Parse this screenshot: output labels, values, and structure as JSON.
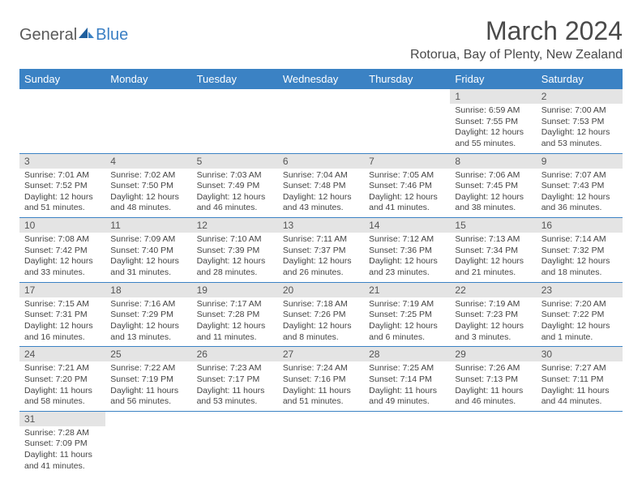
{
  "logo": {
    "text_general": "General",
    "text_blue": "Blue"
  },
  "header": {
    "month_title": "March 2024",
    "location": "Rotorua, Bay of Plenty, New Zealand"
  },
  "colors": {
    "header_bg": "#3b82c4",
    "header_text": "#ffffff",
    "daynum_bg": "#e4e4e4",
    "border": "#3b82c4"
  },
  "weekdays": [
    "Sunday",
    "Monday",
    "Tuesday",
    "Wednesday",
    "Thursday",
    "Friday",
    "Saturday"
  ],
  "weeks": [
    [
      null,
      null,
      null,
      null,
      null,
      {
        "n": "1",
        "sr": "Sunrise: 6:59 AM",
        "ss": "Sunset: 7:55 PM",
        "dl": "Daylight: 12 hours and 55 minutes."
      },
      {
        "n": "2",
        "sr": "Sunrise: 7:00 AM",
        "ss": "Sunset: 7:53 PM",
        "dl": "Daylight: 12 hours and 53 minutes."
      }
    ],
    [
      {
        "n": "3",
        "sr": "Sunrise: 7:01 AM",
        "ss": "Sunset: 7:52 PM",
        "dl": "Daylight: 12 hours and 51 minutes."
      },
      {
        "n": "4",
        "sr": "Sunrise: 7:02 AM",
        "ss": "Sunset: 7:50 PM",
        "dl": "Daylight: 12 hours and 48 minutes."
      },
      {
        "n": "5",
        "sr": "Sunrise: 7:03 AM",
        "ss": "Sunset: 7:49 PM",
        "dl": "Daylight: 12 hours and 46 minutes."
      },
      {
        "n": "6",
        "sr": "Sunrise: 7:04 AM",
        "ss": "Sunset: 7:48 PM",
        "dl": "Daylight: 12 hours and 43 minutes."
      },
      {
        "n": "7",
        "sr": "Sunrise: 7:05 AM",
        "ss": "Sunset: 7:46 PM",
        "dl": "Daylight: 12 hours and 41 minutes."
      },
      {
        "n": "8",
        "sr": "Sunrise: 7:06 AM",
        "ss": "Sunset: 7:45 PM",
        "dl": "Daylight: 12 hours and 38 minutes."
      },
      {
        "n": "9",
        "sr": "Sunrise: 7:07 AM",
        "ss": "Sunset: 7:43 PM",
        "dl": "Daylight: 12 hours and 36 minutes."
      }
    ],
    [
      {
        "n": "10",
        "sr": "Sunrise: 7:08 AM",
        "ss": "Sunset: 7:42 PM",
        "dl": "Daylight: 12 hours and 33 minutes."
      },
      {
        "n": "11",
        "sr": "Sunrise: 7:09 AM",
        "ss": "Sunset: 7:40 PM",
        "dl": "Daylight: 12 hours and 31 minutes."
      },
      {
        "n": "12",
        "sr": "Sunrise: 7:10 AM",
        "ss": "Sunset: 7:39 PM",
        "dl": "Daylight: 12 hours and 28 minutes."
      },
      {
        "n": "13",
        "sr": "Sunrise: 7:11 AM",
        "ss": "Sunset: 7:37 PM",
        "dl": "Daylight: 12 hours and 26 minutes."
      },
      {
        "n": "14",
        "sr": "Sunrise: 7:12 AM",
        "ss": "Sunset: 7:36 PM",
        "dl": "Daylight: 12 hours and 23 minutes."
      },
      {
        "n": "15",
        "sr": "Sunrise: 7:13 AM",
        "ss": "Sunset: 7:34 PM",
        "dl": "Daylight: 12 hours and 21 minutes."
      },
      {
        "n": "16",
        "sr": "Sunrise: 7:14 AM",
        "ss": "Sunset: 7:32 PM",
        "dl": "Daylight: 12 hours and 18 minutes."
      }
    ],
    [
      {
        "n": "17",
        "sr": "Sunrise: 7:15 AM",
        "ss": "Sunset: 7:31 PM",
        "dl": "Daylight: 12 hours and 16 minutes."
      },
      {
        "n": "18",
        "sr": "Sunrise: 7:16 AM",
        "ss": "Sunset: 7:29 PM",
        "dl": "Daylight: 12 hours and 13 minutes."
      },
      {
        "n": "19",
        "sr": "Sunrise: 7:17 AM",
        "ss": "Sunset: 7:28 PM",
        "dl": "Daylight: 12 hours and 11 minutes."
      },
      {
        "n": "20",
        "sr": "Sunrise: 7:18 AM",
        "ss": "Sunset: 7:26 PM",
        "dl": "Daylight: 12 hours and 8 minutes."
      },
      {
        "n": "21",
        "sr": "Sunrise: 7:19 AM",
        "ss": "Sunset: 7:25 PM",
        "dl": "Daylight: 12 hours and 6 minutes."
      },
      {
        "n": "22",
        "sr": "Sunrise: 7:19 AM",
        "ss": "Sunset: 7:23 PM",
        "dl": "Daylight: 12 hours and 3 minutes."
      },
      {
        "n": "23",
        "sr": "Sunrise: 7:20 AM",
        "ss": "Sunset: 7:22 PM",
        "dl": "Daylight: 12 hours and 1 minute."
      }
    ],
    [
      {
        "n": "24",
        "sr": "Sunrise: 7:21 AM",
        "ss": "Sunset: 7:20 PM",
        "dl": "Daylight: 11 hours and 58 minutes."
      },
      {
        "n": "25",
        "sr": "Sunrise: 7:22 AM",
        "ss": "Sunset: 7:19 PM",
        "dl": "Daylight: 11 hours and 56 minutes."
      },
      {
        "n": "26",
        "sr": "Sunrise: 7:23 AM",
        "ss": "Sunset: 7:17 PM",
        "dl": "Daylight: 11 hours and 53 minutes."
      },
      {
        "n": "27",
        "sr": "Sunrise: 7:24 AM",
        "ss": "Sunset: 7:16 PM",
        "dl": "Daylight: 11 hours and 51 minutes."
      },
      {
        "n": "28",
        "sr": "Sunrise: 7:25 AM",
        "ss": "Sunset: 7:14 PM",
        "dl": "Daylight: 11 hours and 49 minutes."
      },
      {
        "n": "29",
        "sr": "Sunrise: 7:26 AM",
        "ss": "Sunset: 7:13 PM",
        "dl": "Daylight: 11 hours and 46 minutes."
      },
      {
        "n": "30",
        "sr": "Sunrise: 7:27 AM",
        "ss": "Sunset: 7:11 PM",
        "dl": "Daylight: 11 hours and 44 minutes."
      }
    ],
    [
      {
        "n": "31",
        "sr": "Sunrise: 7:28 AM",
        "ss": "Sunset: 7:09 PM",
        "dl": "Daylight: 11 hours and 41 minutes."
      },
      null,
      null,
      null,
      null,
      null,
      null
    ]
  ]
}
